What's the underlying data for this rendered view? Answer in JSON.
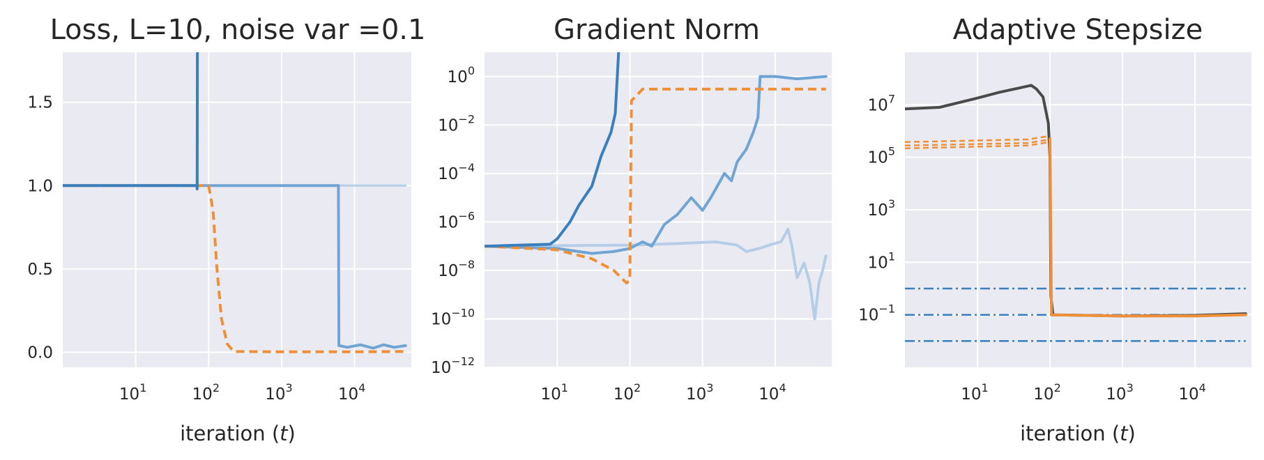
{
  "colors": {
    "dark_blue": "#3a7fbd",
    "mid_blue": "#6fa4d3",
    "light_blue": "#b5cde6",
    "orange": "#ef9038",
    "dark_gray": "#4a4a4a",
    "panel_bg": "#eaeaf2",
    "grid": "#ffffff"
  },
  "chart_data": [
    {
      "type": "line",
      "title": "Loss, L=10, noise var =0.1",
      "xlabel": "iteration (t)",
      "xscale": "log",
      "xlim": [
        1,
        60000
      ],
      "ylim": [
        -0.09,
        1.8
      ],
      "grid": true,
      "xticks": [
        {
          "value": 10,
          "label": "10",
          "sup": "1"
        },
        {
          "value": 100,
          "label": "10",
          "sup": "2"
        },
        {
          "value": 1000,
          "label": "10",
          "sup": "3"
        },
        {
          "value": 10000,
          "label": "10",
          "sup": "4"
        }
      ],
      "yticks": [
        {
          "value": 0,
          "label": "0.0"
        },
        {
          "value": 0.5,
          "label": "0.5"
        },
        {
          "value": 1.0,
          "label": "1.0"
        },
        {
          "value": 1.5,
          "label": "1.5"
        }
      ],
      "series": [
        {
          "color": "light_blue",
          "width": 3,
          "dash": "",
          "points": [
            [
              1,
              1.0
            ],
            [
              50000,
              1.0
            ]
          ]
        },
        {
          "color": "mid_blue",
          "width": 4,
          "dash": "",
          "points": [
            [
              1,
              1.0
            ],
            [
              6000,
              1.0
            ],
            [
              6100,
              0.04
            ],
            [
              8000,
              0.03
            ],
            [
              12000,
              0.045
            ],
            [
              18000,
              0.025
            ],
            [
              25000,
              0.045
            ],
            [
              35000,
              0.03
            ],
            [
              50000,
              0.04
            ]
          ]
        },
        {
          "color": "orange",
          "width": 4,
          "dash": "12,7",
          "points": [
            [
              1,
              1.0
            ],
            [
              100,
              1.0
            ],
            [
              115,
              0.85
            ],
            [
              130,
              0.5
            ],
            [
              150,
              0.2
            ],
            [
              180,
              0.05
            ],
            [
              220,
              0.005
            ],
            [
              1000,
              0.003
            ],
            [
              10000,
              0.003
            ],
            [
              50000,
              0.005
            ]
          ]
        },
        {
          "color": "dark_blue",
          "width": 4,
          "dash": "",
          "points": [
            [
              1,
              1.0
            ],
            [
              69,
              1.0
            ],
            [
              69.5,
              0.98
            ],
            [
              70,
              1.8
            ]
          ]
        }
      ]
    },
    {
      "type": "line",
      "title": "Gradient Norm",
      "xlabel": "",
      "xscale": "log",
      "yscale": "log",
      "xlim": [
        1,
        60000
      ],
      "ylim": [
        1e-12,
        10
      ],
      "grid": true,
      "xticks": [
        {
          "value": 10,
          "label": "10",
          "sup": "1"
        },
        {
          "value": 100,
          "label": "10",
          "sup": "2"
        },
        {
          "value": 1000,
          "label": "10",
          "sup": "3"
        },
        {
          "value": 10000,
          "label": "10",
          "sup": "4"
        }
      ],
      "yticks": [
        {
          "value": 1e-12,
          "label": "10",
          "sup": "−12"
        },
        {
          "value": 1e-10,
          "label": "10",
          "sup": "−10"
        },
        {
          "value": 1e-08,
          "label": "10",
          "sup": "−8"
        },
        {
          "value": 1e-06,
          "label": "10",
          "sup": "−6"
        },
        {
          "value": 0.0001,
          "label": "10",
          "sup": "−4"
        },
        {
          "value": 0.01,
          "label": "10",
          "sup": "−2"
        },
        {
          "value": 1,
          "label": "10",
          "sup": "0"
        }
      ],
      "series": [
        {
          "color": "light_blue",
          "width": 4,
          "dash": "",
          "points": [
            [
              1,
              1e-07
            ],
            [
              100,
              1.1e-07
            ],
            [
              500,
              1.3e-07
            ],
            [
              1500,
              1.5e-07
            ],
            [
              3000,
              1.1e-07
            ],
            [
              4000,
              6e-08
            ],
            [
              6000,
              8e-08
            ],
            [
              9000,
              1.2e-07
            ],
            [
              12000,
              1.5e-07
            ],
            [
              15000,
              5e-07
            ],
            [
              17000,
              1e-07
            ],
            [
              20000,
              5e-09
            ],
            [
              25000,
              2e-08
            ],
            [
              30000,
              3e-09
            ],
            [
              35000,
              1e-10
            ],
            [
              40000,
              3e-09
            ],
            [
              45000,
              1e-08
            ],
            [
              50000,
              4e-08
            ]
          ]
        },
        {
          "color": "mid_blue",
          "width": 4,
          "dash": "",
          "points": [
            [
              1,
              1e-07
            ],
            [
              10,
              8e-08
            ],
            [
              30,
              5e-08
            ],
            [
              60,
              6e-08
            ],
            [
              100,
              8e-08
            ],
            [
              150,
              1.5e-07
            ],
            [
              200,
              1e-07
            ],
            [
              300,
              8e-07
            ],
            [
              450,
              2e-06
            ],
            [
              700,
              1e-05
            ],
            [
              1000,
              3e-06
            ],
            [
              1300,
              1e-05
            ],
            [
              1600,
              3e-05
            ],
            [
              2000,
              0.0001
            ],
            [
              2500,
              5e-05
            ],
            [
              3000,
              0.0003
            ],
            [
              4000,
              0.001
            ],
            [
              5000,
              0.005
            ],
            [
              5800,
              0.02
            ],
            [
              6200,
              1.0
            ],
            [
              10000,
              1.0
            ],
            [
              20000,
              0.8
            ],
            [
              50000,
              1.0
            ]
          ]
        },
        {
          "color": "orange",
          "width": 4,
          "dash": "12,7",
          "points": [
            [
              1,
              1e-07
            ],
            [
              10,
              7e-08
            ],
            [
              30,
              3e-08
            ],
            [
              60,
              1e-08
            ],
            [
              90,
              3e-09
            ],
            [
              100,
              4e-09
            ],
            [
              105,
              0.1
            ],
            [
              120,
              0.15
            ],
            [
              150,
              0.3
            ],
            [
              200,
              0.3
            ],
            [
              1000,
              0.3
            ],
            [
              10000,
              0.3
            ],
            [
              50000,
              0.3
            ]
          ]
        },
        {
          "color": "dark_blue",
          "width": 4,
          "dash": "",
          "points": [
            [
              1,
              1e-07
            ],
            [
              8,
              1.2e-07
            ],
            [
              10,
              2e-07
            ],
            [
              15,
              1e-06
            ],
            [
              20,
              5e-06
            ],
            [
              30,
              3e-05
            ],
            [
              40,
              0.0005
            ],
            [
              55,
              0.005
            ],
            [
              63,
              0.03
            ],
            [
              70,
              10
            ]
          ]
        }
      ]
    },
    {
      "type": "line",
      "title": "Adaptive Stepsize",
      "xlabel": "iteration (t)",
      "xscale": "log",
      "yscale": "log",
      "xlim": [
        1,
        60000
      ],
      "ylim": [
        0.001,
        1000000000.0
      ],
      "grid": true,
      "xticks": [
        {
          "value": 10,
          "label": "10",
          "sup": "1"
        },
        {
          "value": 100,
          "label": "10",
          "sup": "2"
        },
        {
          "value": 1000,
          "label": "10",
          "sup": "3"
        },
        {
          "value": 10000,
          "label": "10",
          "sup": "4"
        }
      ],
      "yticks": [
        {
          "value": 0.1,
          "label": "10",
          "sup": "−1"
        },
        {
          "value": 10,
          "label": "10",
          "sup": "1"
        },
        {
          "value": 1000,
          "label": "10",
          "sup": "3"
        },
        {
          "value": 100000,
          "label": "10",
          "sup": "5"
        },
        {
          "value": 10000000,
          "label": "10",
          "sup": "7"
        }
      ],
      "series": [
        {
          "color": "dark_blue",
          "width": 2.5,
          "dash": "14,5,3,5",
          "points": [
            [
              1,
              1
            ],
            [
              50000,
              1
            ]
          ]
        },
        {
          "color": "dark_blue",
          "width": 2.5,
          "dash": "14,5,3,5",
          "points": [
            [
              1,
              0.1
            ],
            [
              50000,
              0.1
            ]
          ]
        },
        {
          "color": "dark_blue",
          "width": 2.5,
          "dash": "14,5,3,5",
          "points": [
            [
              1,
              0.01
            ],
            [
              50000,
              0.01
            ]
          ]
        },
        {
          "color": "orange",
          "width": 2.5,
          "dash": "8,5",
          "points": [
            [
              1,
              380000
            ],
            [
              50,
              480000
            ],
            [
              100,
              650000
            ]
          ]
        },
        {
          "color": "orange",
          "width": 2.5,
          "dash": "8,5",
          "points": [
            [
              1,
              280000
            ],
            [
              50,
              350000
            ],
            [
              100,
              480000
            ]
          ]
        },
        {
          "color": "orange",
          "width": 2.5,
          "dash": "8,5",
          "points": [
            [
              1,
              220000
            ],
            [
              50,
              280000
            ],
            [
              100,
              380000
            ]
          ]
        },
        {
          "color": "dark_gray",
          "width": 4,
          "dash": "",
          "points": [
            [
              1,
              7000000.0
            ],
            [
              3,
              8000000.0
            ],
            [
              10,
              18000000.0
            ],
            [
              20,
              30000000.0
            ],
            [
              40,
              45000000.0
            ],
            [
              55,
              55000000.0
            ],
            [
              65,
              40000000.0
            ],
            [
              80,
              20000000.0
            ],
            [
              95,
              2000000.0
            ],
            [
              100,
              100000.0
            ],
            [
              103,
              0.5
            ],
            [
              110,
              0.1
            ],
            [
              1000,
              0.09
            ],
            [
              10000,
              0.095
            ],
            [
              50000,
              0.11
            ]
          ]
        },
        {
          "color": "orange",
          "width": 4,
          "dash": "",
          "points": [
            [
              100,
              500000.0
            ],
            [
              105,
              0.1
            ],
            [
              1000,
              0.09
            ],
            [
              10000,
              0.09
            ],
            [
              50000,
              0.1
            ]
          ]
        }
      ]
    }
  ]
}
